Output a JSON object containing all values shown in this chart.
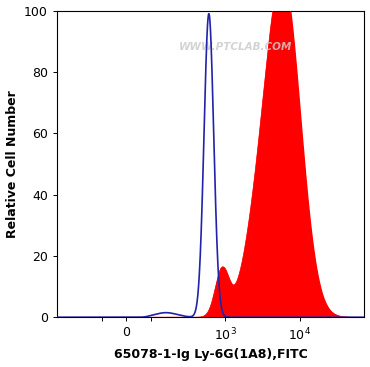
{
  "xlabel": "65078-1-Ig Ly-6G(1A8),FITC",
  "ylabel": "Relative Cell Number",
  "watermark": "WWW.PTCLAB.COM",
  "ylim": [
    0,
    100
  ],
  "yticks": [
    0,
    20,
    40,
    60,
    80,
    100
  ],
  "background_color": "#ffffff",
  "blue_line_color": "#2222aa",
  "red_fill_color": "#ff0000",
  "symlog_linthresh": 100,
  "symlog_linscale": 0.3,
  "xlim_lo": -400,
  "xlim_hi": 75000
}
